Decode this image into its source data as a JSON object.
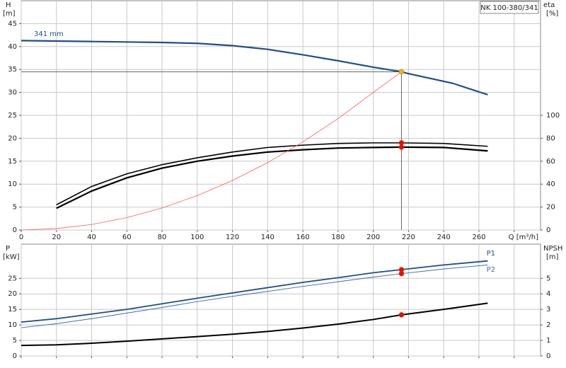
{
  "chart_data": [
    {
      "type": "line",
      "title": "NK 100-380/341",
      "ylabel": "H",
      "ylabel_unit": "[m]",
      "y2label": "eta",
      "y2label_unit": "[%]",
      "xlim": [
        0,
        295
      ],
      "xticks": [
        0,
        20,
        40,
        60,
        80,
        100,
        120,
        140,
        160,
        180,
        200,
        220,
        240,
        260,
        {
          "value": 280,
          "label": "Q [m³/h]"
        }
      ],
      "ylim": [
        0,
        50
      ],
      "yticks": [
        0,
        5,
        10,
        15,
        20,
        25,
        30,
        35,
        40,
        45
      ],
      "y2lim": [
        0,
        200
      ],
      "y2ticks": [
        0,
        20,
        40,
        60,
        80,
        100
      ],
      "grid": true,
      "show_xtick_labels": true,
      "series": [
        {
          "name": "341 mm",
          "color": "#1f4e8c",
          "width": 2.2,
          "x": [
            0,
            20,
            40,
            60,
            80,
            100,
            120,
            140,
            160,
            180,
            200,
            216,
            220,
            245,
            265
          ],
          "values": [
            41.3,
            41.2,
            41.1,
            41.0,
            40.9,
            40.7,
            40.2,
            39.4,
            38.2,
            36.9,
            35.5,
            34.5,
            34.1,
            32,
            29.5
          ]
        },
        {
          "color": "#000000",
          "width": 1.6,
          "axis": "y2",
          "x": [
            20,
            40,
            60,
            80,
            100,
            120,
            140,
            160,
            180,
            200,
            216,
            240,
            265
          ],
          "values": [
            22,
            38,
            49,
            57,
            63,
            68,
            72,
            74,
            75.5,
            76,
            76,
            75.5,
            73
          ]
        },
        {
          "color": "#000000",
          "width": 2.2,
          "axis": "y2",
          "x": [
            20,
            40,
            60,
            80,
            100,
            120,
            140,
            160,
            180,
            200,
            216,
            240,
            265
          ],
          "values": [
            19,
            34,
            45.5,
            54,
            60,
            64.5,
            68,
            70,
            71.5,
            72,
            72.3,
            72,
            69
          ]
        },
        {
          "color": "#ff5a5a",
          "width": 0.8,
          "x": [
            0,
            20,
            40,
            60,
            80,
            100,
            120,
            140,
            160,
            180,
            200,
            216
          ],
          "values": [
            0,
            0.3,
            1.2,
            2.7,
            4.8,
            7.5,
            10.8,
            14.7,
            19.2,
            24.3,
            30,
            34.5
          ]
        }
      ],
      "markers": [
        {
          "x": 216,
          "y": 34.5,
          "color": "#f5b400",
          "duty_lines": true
        },
        {
          "x": 216,
          "y": 76,
          "axis": "y2",
          "color": "#ff0000"
        },
        {
          "x": 216,
          "y": 72.3,
          "axis": "y2",
          "color": "#ff0000"
        }
      ]
    },
    {
      "type": "line",
      "ylabel": "P",
      "ylabel_unit": "[kW]",
      "y2label": "NPSH",
      "y2label_unit": "[m]",
      "xlim": [
        0,
        295
      ],
      "xticks": [
        0,
        20,
        40,
        60,
        80,
        100,
        120,
        140,
        160,
        180,
        200,
        220,
        240,
        260,
        280
      ],
      "ylim": [
        0,
        36
      ],
      "yticks": [
        0,
        5,
        10,
        15,
        20,
        25
      ],
      "y2lim": [
        0,
        7.2
      ],
      "y2ticks": [
        0,
        1,
        2,
        3,
        4,
        5
      ],
      "grid": true,
      "show_xtick_labels": false,
      "series": [
        {
          "name": "P1",
          "color": "#1f4e8c",
          "width": 1.8,
          "x": [
            0,
            20,
            40,
            60,
            80,
            100,
            120,
            140,
            160,
            180,
            200,
            216,
            240,
            265
          ],
          "values": [
            10.9,
            12,
            13.5,
            15,
            16.8,
            18.6,
            20.3,
            22,
            23.7,
            25.2,
            26.8,
            27.8,
            29.3,
            30.6
          ]
        },
        {
          "name": "P2",
          "color": "#3a70b0",
          "width": 1,
          "x": [
            0,
            20,
            40,
            60,
            80,
            100,
            120,
            140,
            160,
            180,
            200,
            216,
            240,
            265
          ],
          "values": [
            9.1,
            10.4,
            12,
            13.8,
            15.6,
            17.5,
            19.2,
            20.8,
            22.4,
            23.9,
            25.4,
            26.5,
            28,
            29.3
          ]
        },
        {
          "color": "#000000",
          "width": 2,
          "axis": "y2",
          "x": [
            0,
            20,
            40,
            60,
            80,
            100,
            120,
            140,
            160,
            180,
            200,
            216,
            240,
            265
          ],
          "values": [
            0.68,
            0.72,
            0.82,
            0.95,
            1.1,
            1.25,
            1.4,
            1.58,
            1.8,
            2.05,
            2.35,
            2.65,
            3,
            3.4
          ]
        }
      ],
      "markers": [
        {
          "x": 216,
          "y": 27.8,
          "color": "#ff0000"
        },
        {
          "x": 216,
          "y": 26.5,
          "color": "#ff0000"
        },
        {
          "x": 216,
          "y": 2.65,
          "axis": "y2",
          "color": "#ff0000"
        }
      ]
    }
  ]
}
